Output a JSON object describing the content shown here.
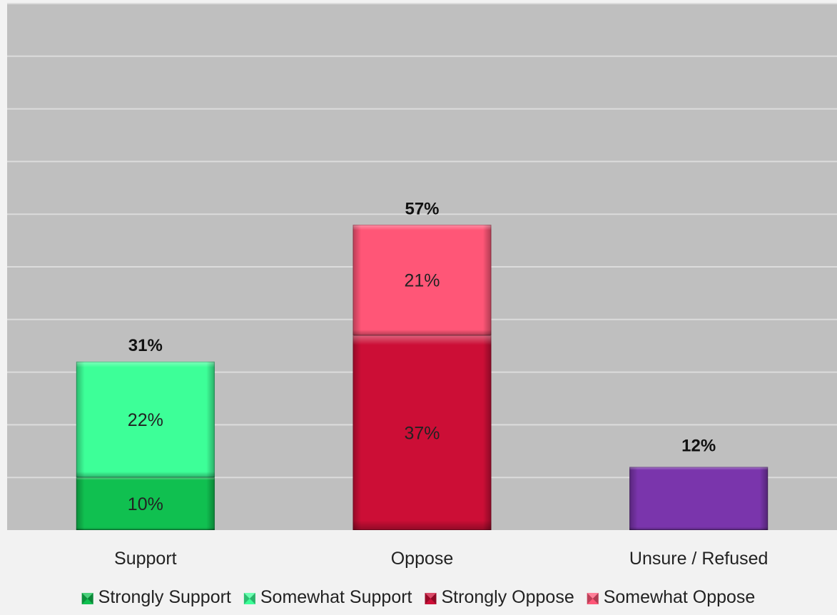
{
  "chart_data": {
    "type": "bar",
    "stacked": true,
    "categories": [
      "Support",
      "Oppose",
      "Unsure / Refused"
    ],
    "series": [
      {
        "name": "Strongly Support",
        "color": "#10c050",
        "values": [
          10,
          null,
          null
        ],
        "labels": [
          "10%",
          "",
          ""
        ]
      },
      {
        "name": "Somewhat Support",
        "color": "#3dff98",
        "values": [
          22,
          null,
          null
        ],
        "labels": [
          "22%",
          "",
          ""
        ]
      },
      {
        "name": "Strongly Oppose",
        "color": "#cc0e36",
        "values": [
          null,
          37,
          null
        ],
        "labels": [
          "",
          "37%",
          ""
        ]
      },
      {
        "name": "Somewhat Oppose",
        "color": "#ff5677",
        "values": [
          null,
          21,
          null
        ],
        "labels": [
          "",
          "21%",
          ""
        ]
      },
      {
        "name": "",
        "color": "#7a35ac",
        "values": [
          null,
          null,
          12
        ],
        "labels": [
          "",
          "",
          ""
        ],
        "in_legend": false
      }
    ],
    "totals": [
      {
        "category": "Support",
        "value": 31,
        "label": "31%"
      },
      {
        "category": "Oppose",
        "value": 57,
        "label": "57%"
      },
      {
        "category": "Unsure / Refused",
        "value": 12,
        "label": "12%"
      }
    ],
    "ylim": [
      0,
      100
    ],
    "y_tick_step": 10,
    "grid": true,
    "legend_position": "bottom",
    "plot_background": "#bfbfbf",
    "gridline_color": "#dcdcdc"
  }
}
